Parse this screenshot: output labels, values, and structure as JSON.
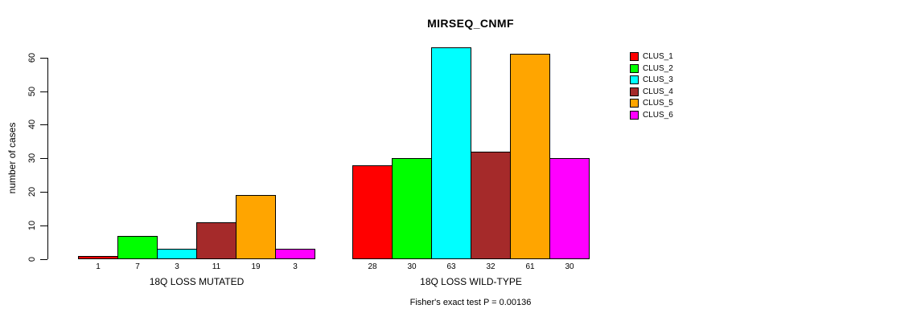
{
  "title": "MIRSEQ_CNMF",
  "annotation": "Fisher's exact test P = 0.00136",
  "chart_data": {
    "type": "bar",
    "title": "MIRSEQ_CNMF",
    "xlabel": "",
    "ylabel": "number of cases",
    "ylim": [
      0,
      63
    ],
    "yticks": [
      0,
      10,
      20,
      30,
      40,
      50,
      60
    ],
    "grid": false,
    "legend_position": "right",
    "bar_value_labels_shown": true,
    "categories": [
      "18Q LOSS MUTATED",
      "18Q LOSS WILD-TYPE"
    ],
    "series": [
      {
        "name": "CLUS_1",
        "color": "#FF0000",
        "values": [
          1,
          28
        ]
      },
      {
        "name": "CLUS_2",
        "color": "#00FF00",
        "values": [
          7,
          30
        ]
      },
      {
        "name": "CLUS_3",
        "color": "#00FFFF",
        "values": [
          3,
          63
        ]
      },
      {
        "name": "CLUS_4",
        "color": "#A52A2A",
        "values": [
          11,
          32
        ]
      },
      {
        "name": "CLUS_5",
        "color": "#FFA500",
        "values": [
          19,
          61
        ]
      },
      {
        "name": "CLUS_6",
        "color": "#FF00FF",
        "values": [
          3,
          30
        ]
      }
    ],
    "annotation": "Fisher's exact test P = 0.00136"
  }
}
